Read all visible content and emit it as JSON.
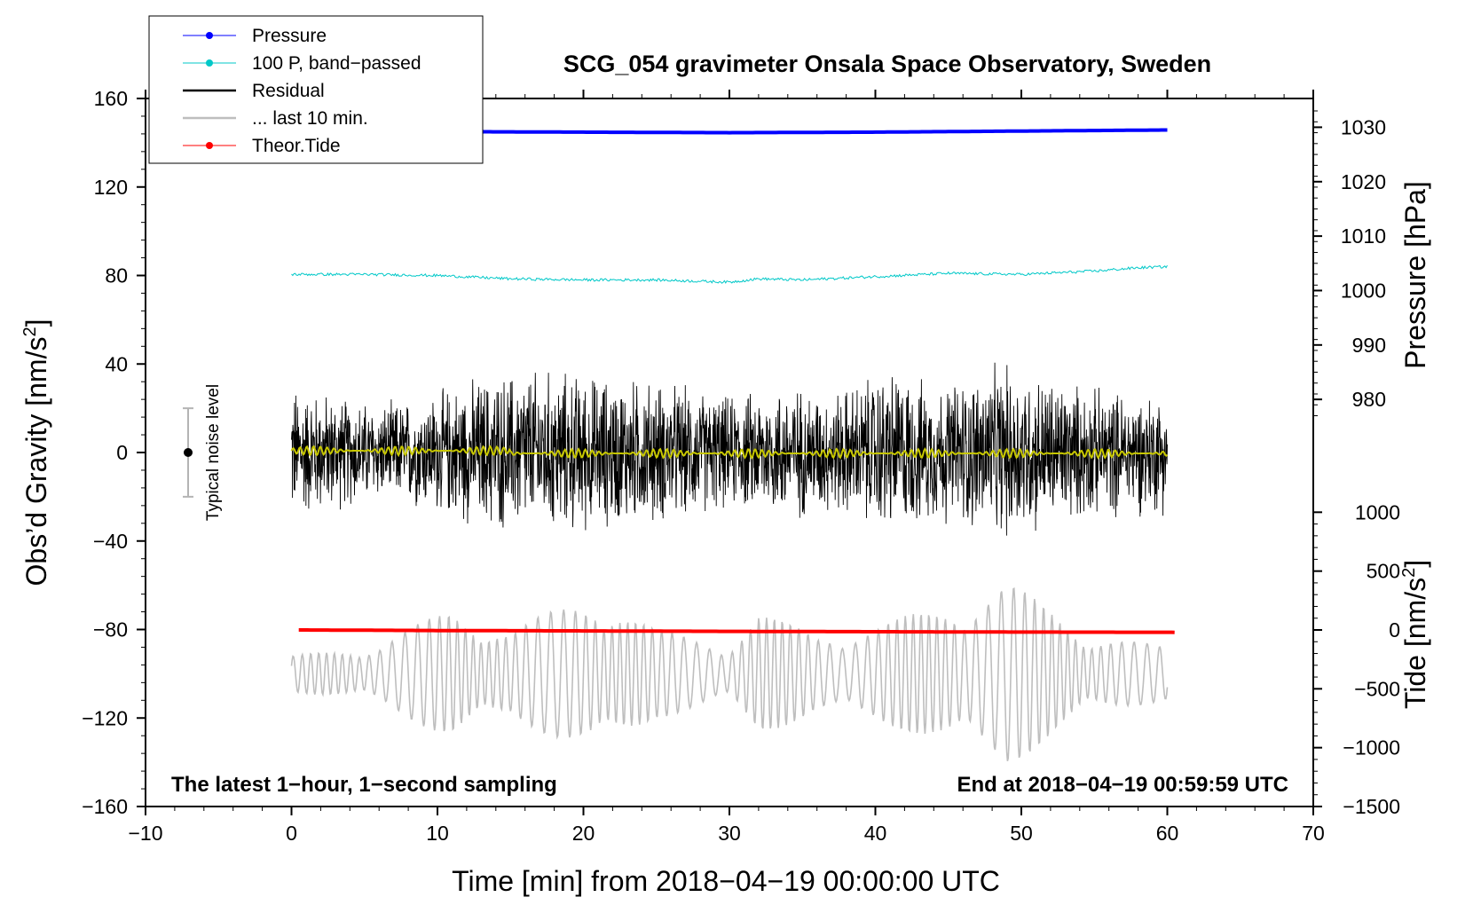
{
  "chart_data": {
    "type": "line",
    "title": "SCG_054 gravimeter Onsala Space Observatory, Sweden",
    "xlabel": "Time [min] from 2018−04−19 00:00:00 UTC",
    "ylabel_main": "Obs’d Gravity [nm/s",
    "ylabel_main_sup": "2",
    "ylabel_main_end": "]",
    "ylabel_pressure": "Pressure [hPa]",
    "ylabel_tide": "Tide [nm/s",
    "ylabel_tide_sup": "2",
    "ylabel_tide_end": "]",
    "xlim": [
      -10,
      70
    ],
    "ylim": [
      -160,
      160
    ],
    "x_ticks": [
      -10,
      0,
      10,
      20,
      30,
      40,
      50,
      60,
      70
    ],
    "x_tick_labels": [
      "−10",
      "0",
      "10",
      "20",
      "30",
      "40",
      "50",
      "60",
      "70"
    ],
    "y_ticks": [
      160,
      120,
      80,
      40,
      0,
      -40,
      -80,
      -120,
      -160
    ],
    "y_tick_labels": [
      "160",
      "120",
      "80",
      "40",
      "0",
      "−40",
      "−80",
      "−120",
      "−160"
    ],
    "pressure_axis": {
      "ticks": [
        1030,
        1020,
        1010,
        1000,
        990,
        980
      ],
      "tick_labels": [
        "1030",
        "1020",
        "1010",
        "1000",
        "990",
        "980"
      ],
      "mapping": {
        "value": [
          1030,
          980
        ],
        "gravity": [
          147,
          24
        ]
      }
    },
    "tide_axis": {
      "ticks": [
        1000,
        500,
        0,
        -500,
        -1000,
        -1500
      ],
      "tick_labels": [
        "1000",
        "500",
        "0",
        "−500",
        "−1000",
        "−1500"
      ],
      "mapping": {
        "value": [
          1000,
          -1500
        ],
        "gravity": [
          -27,
          -160
        ]
      }
    },
    "legend": {
      "position": "top-left",
      "entries": [
        {
          "label": "Pressure",
          "color": "#0000ff",
          "marker": true
        },
        {
          "label": "100 P, band−passed",
          "color": "#00c8c8",
          "marker": true
        },
        {
          "label": "Residual",
          "color": "#000000",
          "marker": false
        },
        {
          "label": "... last 10 min.",
          "color": "#bebebe",
          "marker": false
        },
        {
          "label": "Theor.Tide",
          "color": "#ff0000",
          "marker": true
        }
      ]
    },
    "annotations": {
      "left": "The latest 1−hour, 1−second sampling",
      "right": "End at 2018−04−19 00:59:59 UTC",
      "noise": "Typical noise level",
      "noise_range": [
        -20,
        20
      ]
    },
    "series": [
      {
        "name": "Pressure",
        "color": "#0000ff",
        "x": [
          0,
          10,
          20,
          30,
          40,
          50,
          60
        ],
        "values": [
          1029.3,
          1029.2,
          1029.1,
          1029.0,
          1029.1,
          1029.3,
          1029.5
        ]
      },
      {
        "name": "100 P, band−passed",
        "color": "#00c8c8",
        "x": [
          0,
          5,
          10,
          15,
          20,
          25,
          30,
          32,
          35,
          40,
          45,
          50,
          55,
          58,
          60
        ],
        "values": [
          80.5,
          80.5,
          80,
          78.5,
          78,
          78,
          77,
          78.5,
          78,
          79.5,
          81,
          80.5,
          82,
          83.5,
          84
        ]
      },
      {
        "name": "Theor.Tide",
        "color": "#ff0000",
        "x": [
          0.5,
          10,
          20,
          30,
          40,
          50,
          60.5
        ],
        "values": [
          0,
          -5,
          -8,
          -12,
          -15,
          -18,
          -20
        ]
      },
      {
        "name": "Residual",
        "color": "#000000",
        "x_range": [
          0,
          60
        ],
        "amplitude_envelope": [
          {
            "x": 0,
            "amp": 34
          },
          {
            "x": 6,
            "amp": 24
          },
          {
            "x": 9,
            "amp": 28
          },
          {
            "x": 12,
            "amp": 36
          },
          {
            "x": 16,
            "amp": 42
          },
          {
            "x": 22,
            "amp": 38
          },
          {
            "x": 25,
            "amp": 36
          },
          {
            "x": 30,
            "amp": 28
          },
          {
            "x": 34,
            "amp": 34
          },
          {
            "x": 37,
            "amp": 30
          },
          {
            "x": 41,
            "amp": 42
          },
          {
            "x": 44,
            "amp": 34
          },
          {
            "x": 49,
            "amp": 44
          },
          {
            "x": 55,
            "amp": 32
          },
          {
            "x": 60,
            "amp": 30
          }
        ]
      },
      {
        "name": "... last 10 min.",
        "color": "#bebebe",
        "x_range": [
          0,
          60
        ],
        "center": -100,
        "amplitude_envelope": [
          {
            "x": 0,
            "amp": 8
          },
          {
            "x": 6,
            "amp": 14
          },
          {
            "x": 11,
            "amp": 30
          },
          {
            "x": 15,
            "amp": 20
          },
          {
            "x": 21,
            "amp": 38
          },
          {
            "x": 25,
            "amp": 20
          },
          {
            "x": 30,
            "amp": 14
          },
          {
            "x": 32,
            "amp": 28
          },
          {
            "x": 36,
            "amp": 18
          },
          {
            "x": 40,
            "amp": 22
          },
          {
            "x": 44,
            "amp": 30
          },
          {
            "x": 49,
            "amp": 42
          },
          {
            "x": 55,
            "amp": 18
          },
          {
            "x": 60,
            "amp": 12
          }
        ]
      },
      {
        "name": "smoothed residual",
        "color": "#c8c800",
        "x_range": [
          0,
          60
        ],
        "center": 0,
        "amplitude": 2
      }
    ]
  }
}
